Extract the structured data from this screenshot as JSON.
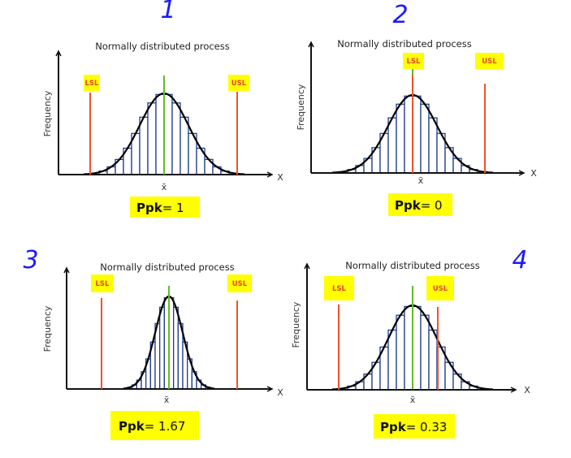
{
  "colors": {
    "highlight": "#ffff00",
    "spec_line": "#f0522a",
    "mean_line": "#66b82e",
    "bars": "#1f3d8a",
    "curve": "#000000",
    "annotation": "#1a1aff"
  },
  "panels": [
    {
      "number": "1",
      "title": "Normally distributed process",
      "ylabel": "Frequency",
      "xlabel": "X",
      "mean_label": "x̄",
      "lsl_label": "LSL",
      "usl_label": "USL",
      "ppk_label": "Ppk",
      "ppk_value": "= 1"
    },
    {
      "number": "2",
      "title": "Normally distributed process",
      "ylabel": "Frequency",
      "xlabel": "X",
      "mean_label": "x̄",
      "lsl_label": "LSL",
      "usl_label": "USL",
      "ppk_label": "Ppk",
      "ppk_value": "= 0"
    },
    {
      "number": "3",
      "title": "Normally distributed process",
      "ylabel": "Frequency",
      "xlabel": "X",
      "mean_label": "x̄",
      "lsl_label": "LSL",
      "usl_label": "USL",
      "ppk_label": "Ppk",
      "ppk_value": "= 1.67"
    },
    {
      "number": "4",
      "title": "Normally distributed process",
      "ylabel": "Frequency",
      "xlabel": "X",
      "mean_label": "x̄",
      "lsl_label": "LSL",
      "usl_label": "USL",
      "ppk_label": "Ppk",
      "ppk_value": "= 0.33"
    }
  ]
}
